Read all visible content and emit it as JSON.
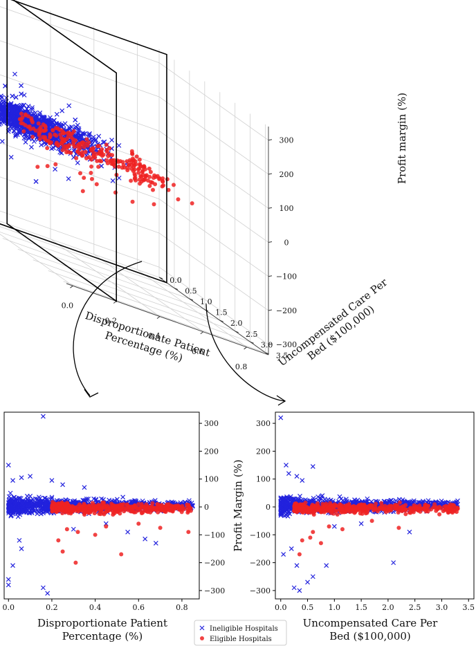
{
  "chart_data": [
    {
      "type": "scatter",
      "projection": "3d",
      "axes": {
        "x": {
          "label": "Disproportionate Patient\nPercentage (%)",
          "ticks": [
            "0.0",
            "0.2",
            "0.4",
            "0.6",
            "0.8"
          ],
          "lim": [
            -0.03,
            0.9
          ]
        },
        "y": {
          "label": "Uncompensated Care Per\nBed ($100,000)",
          "ticks": [
            "0.0",
            "0.5",
            "1.0",
            "1.5",
            "2.0",
            "2.5",
            "3.0",
            "3.5"
          ],
          "lim": [
            0,
            3.6
          ]
        },
        "z": {
          "label": "Profit margin (%)",
          "ticks": [
            "300",
            "200",
            "100",
            "0",
            "−100",
            "−200",
            "−300"
          ],
          "lim": [
            -330,
            340
          ]
        }
      },
      "planes": [
        {
          "x": 0.2,
          "y_range": [
            0,
            3.6
          ],
          "z_range": [
            -330,
            340
          ]
        },
        {
          "y": 0.25,
          "x_range": [
            -0.03,
            0.9
          ],
          "z_range": [
            -330,
            340
          ]
        }
      ],
      "grid": true,
      "series": [
        {
          "name": "Ineligible Hospitals",
          "marker": "x",
          "color": "#2222dd"
        },
        {
          "name": "Eligible Hospitals",
          "marker": "o",
          "color": "#ee2222"
        }
      ]
    },
    {
      "type": "scatter",
      "xlabel": "Disproportionate Patient\nPercentage (%)",
      "x_ticks": [
        "0.0",
        "0.2",
        "0.4",
        "0.6",
        "0.8"
      ],
      "y_ticks": [
        "300",
        "200",
        "100",
        "0",
        "−100",
        "−200",
        "−300"
      ],
      "xlim": [
        -0.02,
        0.88
      ],
      "ylim": [
        -330,
        340
      ],
      "yaxis_side": "right",
      "series": [
        {
          "name": "Ineligible Hospitals",
          "marker": "x",
          "color": "#2222dd",
          "x_range": [
            0.0,
            0.85
          ],
          "y_center": 5,
          "y_band": 35
        },
        {
          "name": "Eligible Hospitals",
          "marker": "o",
          "color": "#ee2222",
          "x_range": [
            0.2,
            0.85
          ],
          "y_center": -5,
          "y_band": 20
        }
      ],
      "outliers": {
        "Ineligible Hospitals": [
          [
            0.16,
            325
          ],
          [
            0.0,
            150
          ],
          [
            0.02,
            95
          ],
          [
            0.06,
            105
          ],
          [
            0.1,
            110
          ],
          [
            0.2,
            95
          ],
          [
            0.02,
            -210
          ],
          [
            0.0,
            -260
          ],
          [
            0.0,
            -280
          ],
          [
            0.18,
            -310
          ],
          [
            0.16,
            -290
          ],
          [
            0.06,
            -150
          ],
          [
            0.05,
            -120
          ],
          [
            0.68,
            -130
          ],
          [
            0.63,
            -115
          ],
          [
            0.3,
            -80
          ],
          [
            0.45,
            -60
          ],
          [
            0.55,
            -90
          ],
          [
            0.25,
            80
          ],
          [
            0.35,
            70
          ]
        ],
        "Eligible Hospitals": [
          [
            0.31,
            -200
          ],
          [
            0.25,
            -160
          ],
          [
            0.23,
            -120
          ],
          [
            0.27,
            -80
          ],
          [
            0.32,
            -90
          ],
          [
            0.52,
            -170
          ],
          [
            0.4,
            -100
          ],
          [
            0.7,
            -75
          ],
          [
            0.83,
            -90
          ],
          [
            0.6,
            -60
          ],
          [
            0.45,
            -70
          ]
        ]
      }
    },
    {
      "type": "scatter",
      "xlabel": "Uncompensated Care Per\nBed ($100,000)",
      "ylabel": "Profit Margin (%)",
      "x_ticks": [
        "0.0",
        "0.5",
        "1.0",
        "1.5",
        "2.0",
        "2.5",
        "3.0",
        "3.5"
      ],
      "y_ticks": [
        "300",
        "200",
        "100",
        "0",
        "−100",
        "−200",
        "−300"
      ],
      "xlim": [
        -0.1,
        3.6
      ],
      "ylim": [
        -330,
        340
      ],
      "series": [
        {
          "name": "Ineligible Hospitals",
          "marker": "x",
          "color": "#2222dd",
          "x_range": [
            0.0,
            3.3
          ],
          "y_center": 5,
          "y_band": 35
        },
        {
          "name": "Eligible Hospitals",
          "marker": "o",
          "color": "#ee2222",
          "x_range": [
            0.25,
            3.3
          ],
          "y_center": -5,
          "y_band": 20
        }
      ],
      "outliers": {
        "Ineligible Hospitals": [
          [
            0.0,
            320
          ],
          [
            0.1,
            150
          ],
          [
            0.15,
            120
          ],
          [
            0.6,
            145
          ],
          [
            0.3,
            110
          ],
          [
            0.4,
            95
          ],
          [
            0.3,
            -210
          ],
          [
            0.25,
            -290
          ],
          [
            0.35,
            -300
          ],
          [
            0.5,
            -270
          ],
          [
            0.6,
            -250
          ],
          [
            0.85,
            -210
          ],
          [
            2.1,
            -200
          ],
          [
            0.05,
            -170
          ],
          [
            0.2,
            -150
          ],
          [
            2.4,
            -90
          ],
          [
            1.5,
            -60
          ],
          [
            1.0,
            -70
          ]
        ],
        "Eligible Hospitals": [
          [
            0.35,
            -170
          ],
          [
            0.4,
            -120
          ],
          [
            0.55,
            -110
          ],
          [
            0.6,
            -90
          ],
          [
            0.75,
            -130
          ],
          [
            0.9,
            -70
          ],
          [
            1.15,
            -80
          ],
          [
            2.2,
            -75
          ],
          [
            1.7,
            -50
          ],
          [
            3.2,
            -20
          ]
        ]
      }
    }
  ],
  "legend": {
    "items": [
      {
        "label": "Ineligible Hospitals",
        "marker": "x",
        "color": "#2222dd"
      },
      {
        "label": "Eligible Hospitals",
        "marker": "o",
        "color": "#ee2222"
      }
    ]
  }
}
